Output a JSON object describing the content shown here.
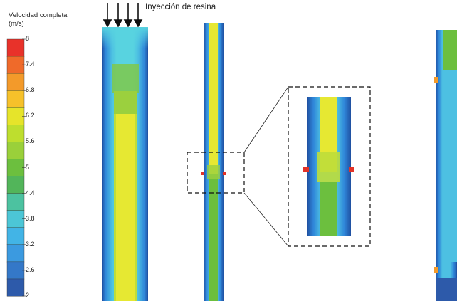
{
  "legend": {
    "title": "Velocidad completa\n(m/s)",
    "ticks": [
      "8",
      "7.4",
      "6.8",
      "6.2",
      "5.6",
      "5",
      "4.4",
      "3.8",
      "3.2",
      "2.6",
      "2"
    ],
    "colors": [
      "#e8322a",
      "#ef6a2a",
      "#f39a2a",
      "#f6c12a",
      "#e6e42a",
      "#bede2e",
      "#9ad03a",
      "#6cbf3e",
      "#52b55a",
      "#4cc2a0",
      "#4cc6d6",
      "#42b4e6",
      "#3b9ae0",
      "#3478c8",
      "#2d5aaa"
    ]
  },
  "labels": {
    "injection": "Inyección de resina"
  },
  "colors": {
    "dark_blue": "#1f4fa0",
    "mid_blue": "#2f86d9",
    "light_blue": "#4dc0e2",
    "cyan": "#58d3e0",
    "green": "#7fc84a",
    "yellow_green": "#bedd3a",
    "yellow": "#e6e832",
    "red": "#e23228"
  }
}
